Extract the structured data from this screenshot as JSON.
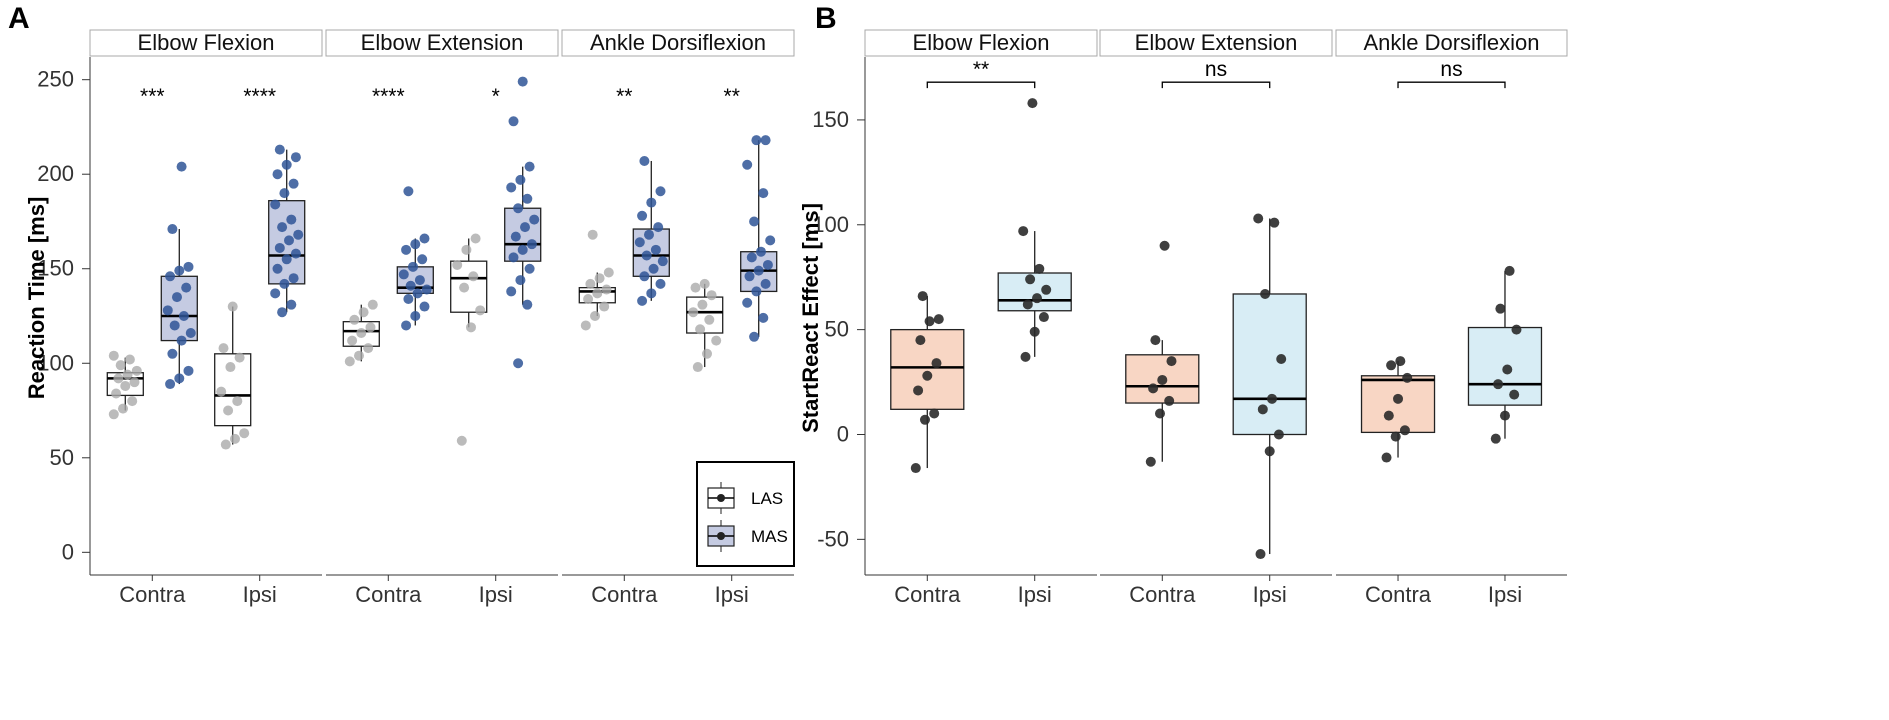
{
  "colors": {
    "las_fill": "#ffffff",
    "mas_fill": "#c5cbe2",
    "las_point": "#aaaaaa",
    "mas_point": "#2f5596",
    "contra_fill": "#f8d6c4",
    "ipsi_fill": "#d8edf5",
    "b_point": "#2a2a2a"
  },
  "chart_data": [
    {
      "panel_label": "A",
      "type": "box",
      "ylabel": "Reaction Time [ms]",
      "ylim": [
        -12,
        262
      ],
      "yticks": [
        0,
        50,
        100,
        150,
        200,
        250
      ],
      "categories": [
        "Contra",
        "Ipsi"
      ],
      "legend": {
        "title": "",
        "position": "bottom-right",
        "entries": [
          "LAS",
          "MAS"
        ]
      },
      "facets": [
        {
          "title": "Elbow Flexion",
          "boxes": [
            {
              "category": "Contra",
              "group": "LAS",
              "q1": 83,
              "median": 92,
              "q3": 95,
              "whisker_low": 75,
              "whisker_high": 103,
              "points": [
                73,
                76,
                80,
                84,
                88,
                90,
                92,
                94,
                96,
                99,
                102,
                104
              ]
            },
            {
              "category": "Contra",
              "group": "MAS",
              "q1": 112,
              "median": 125,
              "q3": 146,
              "whisker_low": 89,
              "whisker_high": 171,
              "points": [
                89,
                92,
                96,
                105,
                112,
                116,
                120,
                125,
                128,
                135,
                140,
                146,
                149,
                151,
                171,
                204
              ]
            },
            {
              "category": "Ipsi",
              "group": "LAS",
              "q1": 67,
              "median": 83,
              "q3": 105,
              "whisker_low": 57,
              "whisker_high": 130,
              "points": [
                57,
                60,
                63,
                75,
                80,
                85,
                98,
                103,
                108,
                130
              ]
            },
            {
              "category": "Ipsi",
              "group": "MAS",
              "q1": 142,
              "median": 157,
              "q3": 186,
              "whisker_low": 127,
              "whisker_high": 213,
              "points": [
                127,
                131,
                137,
                142,
                145,
                150,
                155,
                158,
                161,
                165,
                168,
                172,
                176,
                184,
                190,
                195,
                200,
                205,
                209,
                213
              ]
            }
          ],
          "annotations": [
            {
              "category": "Contra",
              "text": "***"
            },
            {
              "category": "Ipsi",
              "text": "****"
            }
          ]
        },
        {
          "title": "Elbow Extension",
          "boxes": [
            {
              "category": "Contra",
              "group": "LAS",
              "q1": 109,
              "median": 117,
              "q3": 122,
              "whisker_low": 101,
              "whisker_high": 131,
              "points": [
                101,
                104,
                108,
                112,
                116,
                119,
                123,
                127,
                131
              ]
            },
            {
              "category": "Contra",
              "group": "MAS",
              "q1": 137,
              "median": 140,
              "q3": 151,
              "whisker_low": 120,
              "whisker_high": 166,
              "points": [
                120,
                125,
                130,
                134,
                137,
                139,
                141,
                144,
                147,
                151,
                155,
                160,
                163,
                166,
                191
              ]
            },
            {
              "category": "Ipsi",
              "group": "LAS",
              "q1": 127,
              "median": 145,
              "q3": 154,
              "whisker_low": 119,
              "whisker_high": 166,
              "points": [
                59,
                119,
                128,
                140,
                146,
                152,
                160,
                166
              ]
            },
            {
              "category": "Ipsi",
              "group": "MAS",
              "q1": 154,
              "median": 163,
              "q3": 182,
              "whisker_low": 131,
              "whisker_high": 204,
              "points": [
                100,
                131,
                138,
                144,
                150,
                156,
                160,
                163,
                167,
                172,
                176,
                182,
                187,
                193,
                197,
                204,
                228,
                249
              ]
            }
          ],
          "annotations": [
            {
              "category": "Contra",
              "text": "****"
            },
            {
              "category": "Ipsi",
              "text": "*"
            }
          ]
        },
        {
          "title": "Ankle Dorsiflexion",
          "boxes": [
            {
              "category": "Contra",
              "group": "LAS",
              "q1": 132,
              "median": 138,
              "q3": 140,
              "whisker_low": 125,
              "whisker_high": 148,
              "points": [
                120,
                125,
                130,
                134,
                137,
                139,
                142,
                145,
                148,
                168
              ]
            },
            {
              "category": "Contra",
              "group": "MAS",
              "q1": 146,
              "median": 157,
              "q3": 171,
              "whisker_low": 133,
              "whisker_high": 207,
              "points": [
                133,
                137,
                142,
                146,
                150,
                154,
                157,
                160,
                164,
                168,
                172,
                178,
                185,
                191,
                207
              ]
            },
            {
              "category": "Ipsi",
              "group": "LAS",
              "q1": 116,
              "median": 127,
              "q3": 135,
              "whisker_low": 98,
              "whisker_high": 142,
              "points": [
                98,
                105,
                112,
                118,
                123,
                127,
                131,
                136,
                140,
                142
              ]
            },
            {
              "category": "Ipsi",
              "group": "MAS",
              "q1": 138,
              "median": 149,
              "q3": 159,
              "whisker_low": 114,
              "whisker_high": 218,
              "points": [
                114,
                124,
                132,
                138,
                142,
                146,
                149,
                152,
                156,
                159,
                165,
                175,
                190,
                205,
                218,
                218
              ]
            }
          ],
          "annotations": [
            {
              "category": "Contra",
              "text": "**"
            },
            {
              "category": "Ipsi",
              "text": "**"
            }
          ]
        }
      ]
    },
    {
      "panel_label": "B",
      "type": "box",
      "ylabel": "StartReact Effect [ms]",
      "ylim": [
        -67,
        180
      ],
      "yticks": [
        -50,
        0,
        50,
        100,
        150
      ],
      "categories": [
        "Contra",
        "Ipsi"
      ],
      "facets": [
        {
          "title": "Elbow Flexion",
          "boxes": [
            {
              "category": "Contra",
              "q1": 12,
              "median": 32,
              "q3": 50,
              "whisker_low": -16,
              "whisker_high": 66,
              "points": [
                -16,
                7,
                10,
                21,
                28,
                34,
                45,
                54,
                55,
                66
              ]
            },
            {
              "category": "Ipsi",
              "q1": 59,
              "median": 64,
              "q3": 77,
              "whisker_low": 37,
              "whisker_high": 97,
              "points": [
                37,
                49,
                56,
                62,
                65,
                69,
                74,
                79,
                97,
                158
              ]
            }
          ],
          "bracket": {
            "from": "Contra",
            "to": "Ipsi",
            "text": "**",
            "y": 168
          }
        },
        {
          "title": "Elbow Extension",
          "boxes": [
            {
              "category": "Contra",
              "q1": 15,
              "median": 23,
              "q3": 38,
              "whisker_low": -13,
              "whisker_high": 45,
              "points": [
                -13,
                10,
                16,
                22,
                26,
                35,
                45,
                90
              ]
            },
            {
              "category": "Ipsi",
              "q1": 0,
              "median": 17,
              "q3": 67,
              "whisker_low": -57,
              "whisker_high": 103,
              "points": [
                -57,
                -8,
                0,
                12,
                17,
                36,
                67,
                101,
                103
              ]
            }
          ],
          "bracket": {
            "from": "Contra",
            "to": "Ipsi",
            "text": "ns",
            "y": 168
          }
        },
        {
          "title": "Ankle Dorsiflexion",
          "boxes": [
            {
              "category": "Contra",
              "q1": 1,
              "median": 26,
              "q3": 28,
              "whisker_low": -11,
              "whisker_high": 35,
              "points": [
                -11,
                -1,
                2,
                9,
                17,
                27,
                33,
                35
              ]
            },
            {
              "category": "Ipsi",
              "q1": 14,
              "median": 24,
              "q3": 51,
              "whisker_low": -2,
              "whisker_high": 78,
              "points": [
                -2,
                9,
                19,
                24,
                31,
                50,
                60,
                78
              ]
            }
          ],
          "bracket": {
            "from": "Contra",
            "to": "Ipsi",
            "text": "ns",
            "y": 168
          }
        }
      ]
    }
  ]
}
